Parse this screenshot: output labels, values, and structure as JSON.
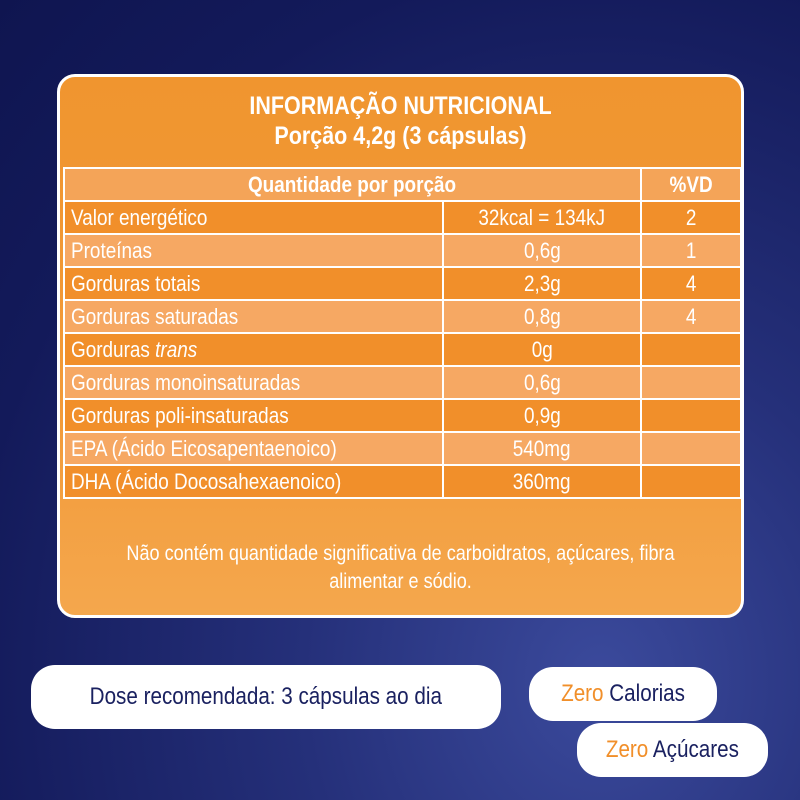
{
  "table": {
    "title_line1": "INFORMAÇÃO NUTRICIONAL",
    "title_line2": "Porção 4,2g (3 cápsulas)",
    "header_quantity": "Quantidade por porção",
    "header_vd": "%VD",
    "rows": [
      {
        "name": "Valor energético",
        "amount": "32kcal = 134kJ",
        "vd": "2"
      },
      {
        "name": "Proteínas",
        "amount": "0,6g",
        "vd": "1"
      },
      {
        "name": "Gorduras totais",
        "amount": "2,3g",
        "vd": "4"
      },
      {
        "name": "Gorduras saturadas",
        "amount": "0,8g",
        "vd": "4"
      },
      {
        "name_prefix": "Gorduras ",
        "name_italic": "trans",
        "amount": "0g",
        "vd": ""
      },
      {
        "name": "Gorduras monoinsaturadas",
        "amount": "0,6g",
        "vd": ""
      },
      {
        "name": "Gorduras poli-insaturadas",
        "amount": "0,9g",
        "vd": ""
      },
      {
        "name": "EPA (Ácido Eicosapentaenoico)",
        "amount": "540mg",
        "vd": ""
      },
      {
        "name": "DHA (Ácido Docosahexaenoico)",
        "amount": "360mg",
        "vd": ""
      }
    ],
    "footer_line1": "Não contém quantidade significativa de carboidratos, açúcares, fibra",
    "footer_line2": "alimentar e sódio."
  },
  "badges": {
    "dose": "Dose recomendada: 3 cápsulas ao dia",
    "zero_word": "Zero",
    "calorias": "Calorias",
    "acucares": "Açúcares"
  },
  "colors": {
    "panel_orange": "#f29a38",
    "row_dark": "#f18f2a",
    "row_light": "#f6a863",
    "background_navy": "#131a5a",
    "accent_orange": "#f18f2a"
  }
}
